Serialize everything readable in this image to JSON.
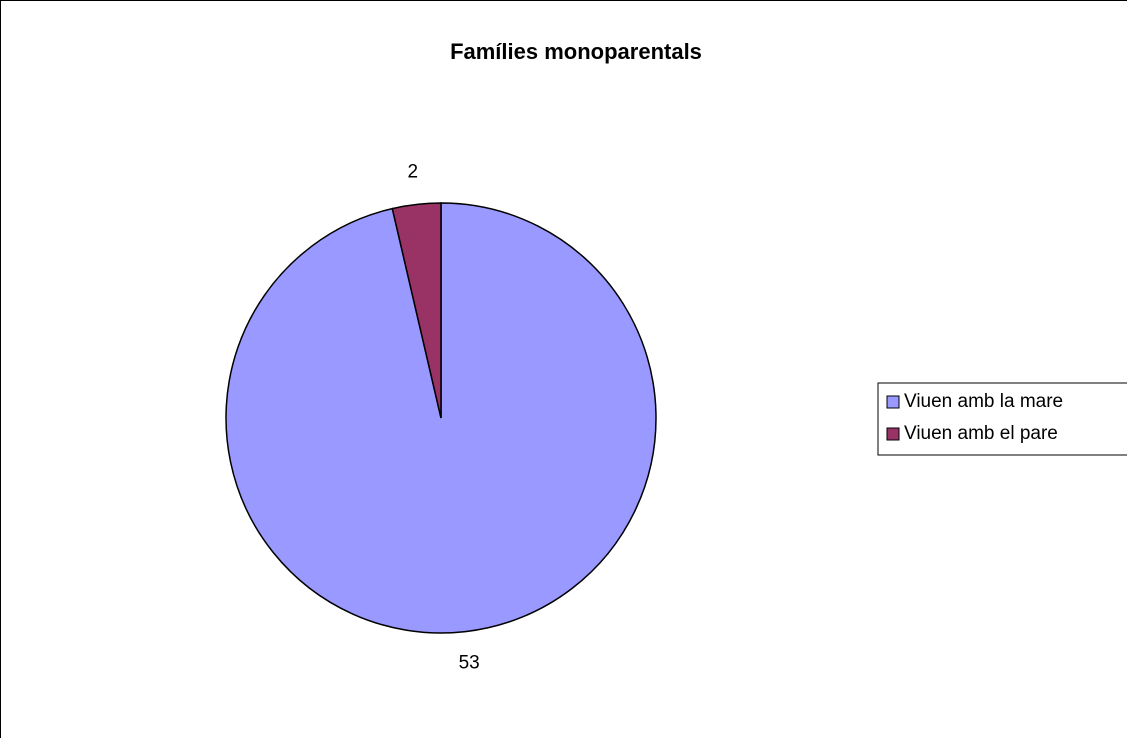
{
  "chart_data": {
    "type": "pie",
    "title": "Famílies monoparentals",
    "categories": [
      "Viuen amb la mare",
      "Viuen amb el pare"
    ],
    "values": [
      53,
      2
    ],
    "colors": [
      "#9999ff",
      "#993366"
    ],
    "legend": "right"
  }
}
